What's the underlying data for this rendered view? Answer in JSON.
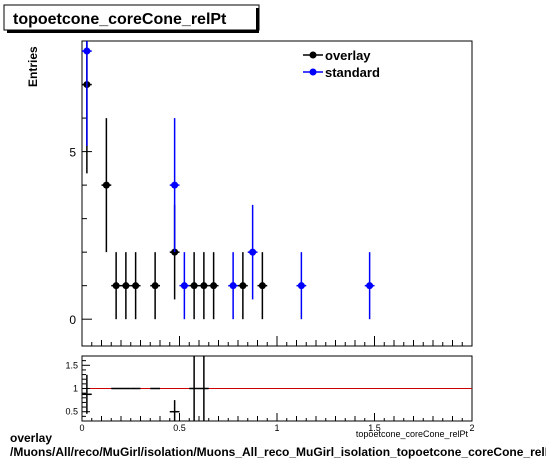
{
  "colors": {
    "overlay": "#000000",
    "standard": "#0000ff",
    "ratio_line": "#cc0000",
    "frame": "#000000",
    "background": "#ffffff"
  },
  "chart_data": [
    {
      "type": "scatter",
      "title": "topoetcone_coreCone_relPt",
      "xlabel": "",
      "ylabel": "Entries",
      "xlim": [
        0,
        2
      ],
      "ylim": [
        -0.8,
        8.3
      ],
      "y_ticks": [
        0,
        5
      ],
      "legend_position": "top-right",
      "grid": false,
      "series": [
        {
          "name": "overlay",
          "color": "#000000",
          "points": [
            {
              "x": 0.025,
              "y": 7,
              "yerr": 2.65
            },
            {
              "x": 0.125,
              "y": 4,
              "yerr": 2
            },
            {
              "x": 0.175,
              "y": 1,
              "yerr": 1
            },
            {
              "x": 0.225,
              "y": 1,
              "yerr": 1
            },
            {
              "x": 0.275,
              "y": 1,
              "yerr": 1
            },
            {
              "x": 0.375,
              "y": 1,
              "yerr": 1
            },
            {
              "x": 0.475,
              "y": 2,
              "yerr": 1.41
            },
            {
              "x": 0.575,
              "y": 1,
              "yerr": 1
            },
            {
              "x": 0.625,
              "y": 1,
              "yerr": 1
            },
            {
              "x": 0.675,
              "y": 1,
              "yerr": 1
            },
            {
              "x": 0.825,
              "y": 1,
              "yerr": 1
            },
            {
              "x": 0.925,
              "y": 1,
              "yerr": 1
            }
          ]
        },
        {
          "name": "standard",
          "color": "#0000ff",
          "points": [
            {
              "x": 0.025,
              "y": 8,
              "yerr": 2.83
            },
            {
              "x": 0.475,
              "y": 4,
              "yerr": 2
            },
            {
              "x": 0.525,
              "y": 1,
              "yerr": 1
            },
            {
              "x": 0.775,
              "y": 1,
              "yerr": 1
            },
            {
              "x": 0.875,
              "y": 2,
              "yerr": 1.41
            },
            {
              "x": 1.125,
              "y": 1,
              "yerr": 1
            },
            {
              "x": 1.475,
              "y": 1,
              "yerr": 1
            }
          ]
        }
      ]
    },
    {
      "type": "scatter",
      "title": "",
      "xlabel": "topoetcone_coreCone_relPt",
      "ylabel": "",
      "xlim": [
        0,
        2
      ],
      "ylim": [
        0.3,
        1.7
      ],
      "x_ticks": [
        0,
        0.5,
        1,
        1.5,
        2
      ],
      "x_tick_labels": [
        "0",
        "0.5",
        "1",
        "1.5",
        "2"
      ],
      "y_ticks": [
        0.5,
        1,
        1.5
      ],
      "y_tick_labels": [
        "0.5",
        "1",
        "1.5"
      ],
      "reference_line": 1.0,
      "series": [
        {
          "name": "",
          "color": "#000000",
          "points": [
            {
              "x": 0.025,
              "y": 0.875,
              "yerr": 0.42
            },
            {
              "x": 0.175,
              "y": 1.0,
              "yerr": 0
            },
            {
              "x": 0.225,
              "y": 1.0,
              "yerr": 0
            },
            {
              "x": 0.275,
              "y": 1.0,
              "yerr": 0
            },
            {
              "x": 0.375,
              "y": 1.0,
              "yerr": 0
            },
            {
              "x": 0.475,
              "y": 0.5,
              "yerr": 0.25
            },
            {
              "x": 0.575,
              "y": 1.0,
              "yerr": 0.7
            },
            {
              "x": 0.625,
              "y": 1.0,
              "yerr": 0.7
            }
          ]
        }
      ]
    }
  ],
  "footer": {
    "line1": "overlay",
    "line2": "/Muons/All/reco/MuGirl/isolation/Muons_All_reco_MuGirl_isolation_topoetcone_coreCone_relPt"
  }
}
